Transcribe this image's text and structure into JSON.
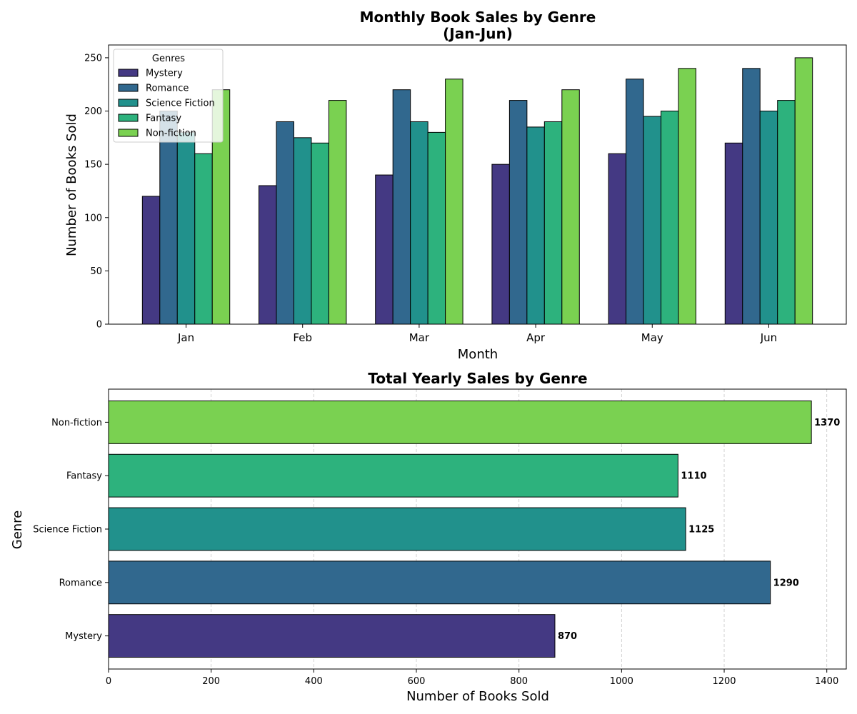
{
  "chart_data": [
    {
      "type": "bar",
      "title": "Monthly Book Sales by Genre",
      "subtitle": "(Jan-Jun)",
      "xlabel": "Month",
      "ylabel": "Number of Books Sold",
      "categories": [
        "Jan",
        "Feb",
        "Mar",
        "Apr",
        "May",
        "Jun"
      ],
      "ylim": [
        0,
        262
      ],
      "yticks": [
        0,
        50,
        100,
        150,
        200,
        250
      ],
      "grid": false,
      "legend": {
        "title": "Genres",
        "position": "top-left"
      },
      "series": [
        {
          "name": "Mystery",
          "color": "#443983",
          "values": [
            120,
            130,
            140,
            150,
            160,
            170
          ]
        },
        {
          "name": "Romance",
          "color": "#31688e",
          "values": [
            200,
            190,
            220,
            210,
            230,
            240
          ]
        },
        {
          "name": "Science Fiction",
          "color": "#21918c",
          "values": [
            180,
            175,
            190,
            185,
            195,
            200
          ]
        },
        {
          "name": "Fantasy",
          "color": "#2db27d",
          "values": [
            160,
            170,
            180,
            190,
            200,
            210
          ]
        },
        {
          "name": "Non-fiction",
          "color": "#7ad151",
          "values": [
            220,
            210,
            230,
            220,
            240,
            250
          ]
        }
      ]
    },
    {
      "type": "bar",
      "orientation": "horizontal",
      "title": "Total Yearly Sales by Genre",
      "xlabel": "Number of Books Sold",
      "ylabel": "Genre",
      "categories": [
        "Mystery",
        "Romance",
        "Science Fiction",
        "Fantasy",
        "Non-fiction"
      ],
      "values": [
        870,
        1290,
        1125,
        1110,
        1370
      ],
      "colors": [
        "#443983",
        "#31688e",
        "#21918c",
        "#2db27d",
        "#7ad151"
      ],
      "xlim": [
        0,
        1438
      ],
      "xticks": [
        0,
        200,
        400,
        600,
        800,
        1000,
        1200,
        1400
      ],
      "grid": "x-dashed"
    }
  ]
}
